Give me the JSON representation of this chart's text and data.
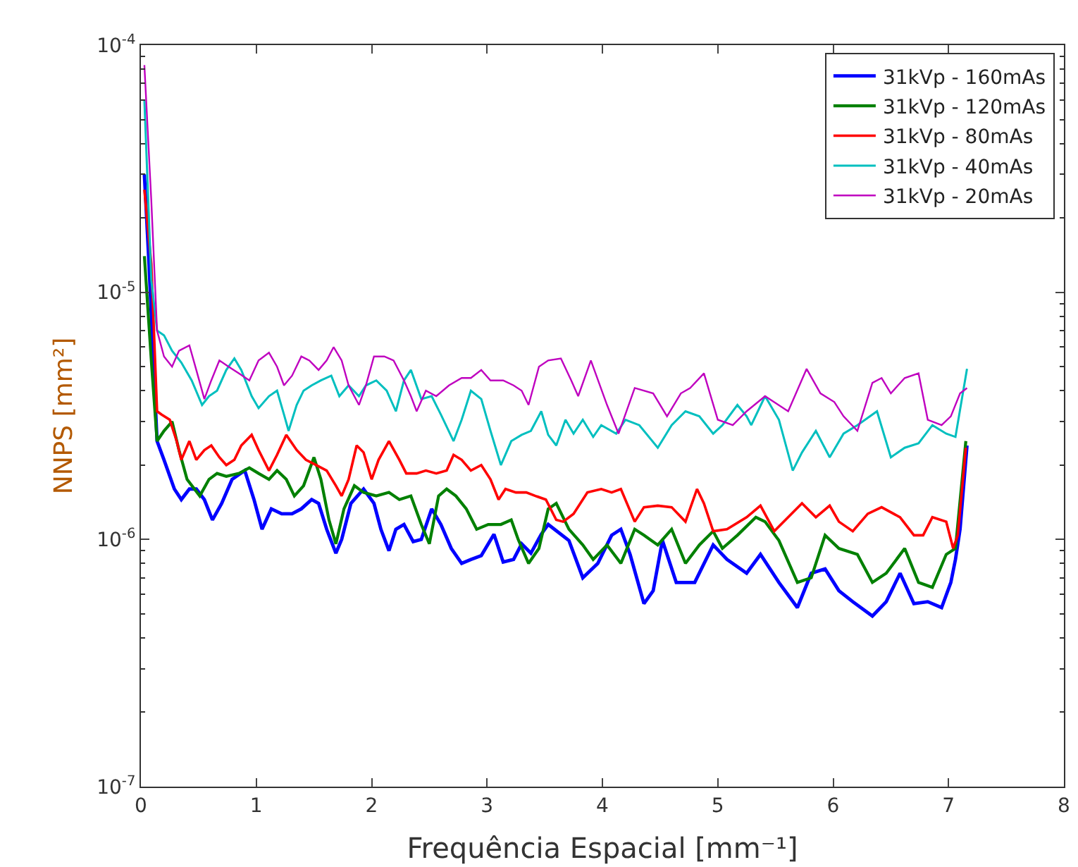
{
  "chart_data": {
    "type": "line",
    "xlabel": "Frequência Espacial [mm⁻¹]",
    "ylabel": "NNPS [mm²]",
    "xlim": [
      0,
      8
    ],
    "xticks": [
      0,
      1,
      2,
      3,
      4,
      5,
      6,
      7,
      8
    ],
    "ylim": [
      1e-07,
      0.0001
    ],
    "yticks": [
      {
        "value": 1e-07,
        "label": "10$^{-7}$"
      },
      {
        "value": 1e-06,
        "label": "10$^{-6}$"
      },
      {
        "value": 1e-05,
        "label": "10$^{-5}$"
      },
      {
        "value": 0.0001,
        "label": "10$^{-4}$"
      }
    ],
    "log": "y",
    "legend": "top right",
    "marker": "none",
    "line_style": "solid",
    "series": [
      {
        "name": "31kVp - 160mAs",
        "color": "#0000ff",
        "x": [
          0.03,
          0.07,
          0.14,
          0.2,
          0.29,
          0.35,
          0.42,
          0.48,
          0.55,
          0.62,
          0.7,
          0.79,
          0.9,
          0.98,
          1.05,
          1.13,
          1.22,
          1.31,
          1.39,
          1.48,
          1.54,
          1.61,
          1.69,
          1.74,
          1.82,
          1.93,
          2.02,
          2.08,
          2.15,
          2.21,
          2.28,
          2.36,
          2.43,
          2.52,
          2.6,
          2.69,
          2.78,
          2.86,
          2.95,
          3.06,
          3.14,
          3.23,
          3.3,
          3.38,
          3.47,
          3.53,
          3.71,
          3.83,
          3.96,
          4.08,
          4.16,
          4.24,
          4.36,
          4.44,
          4.52,
          4.64,
          4.8,
          4.96,
          5.08,
          5.25,
          5.37,
          5.53,
          5.69,
          5.81,
          5.93,
          6.05,
          6.17,
          6.34,
          6.46,
          6.58,
          6.7,
          6.82,
          6.94,
          7.02,
          7.06,
          7.1,
          7.16
        ],
        "values": [
          3e-05,
          1.3e-05,
          2.5e-06,
          2.1e-06,
          1.6e-06,
          1.45e-06,
          1.6e-06,
          1.6e-06,
          1.45e-06,
          1.2e-06,
          1.4e-06,
          1.75e-06,
          1.9e-06,
          1.45e-06,
          1.1e-06,
          1.33e-06,
          1.27e-06,
          1.27e-06,
          1.33e-06,
          1.45e-06,
          1.4e-06,
          1.1e-06,
          8.8e-07,
          1e-06,
          1.4e-06,
          1.6e-06,
          1.4e-06,
          1.1e-06,
          9e-07,
          1.1e-06,
          1.15e-06,
          9.8e-07,
          1e-06,
          1.33e-06,
          1.15e-06,
          9.2e-07,
          8e-07,
          8.3e-07,
          8.6e-07,
          1.05e-06,
          8.1e-07,
          8.3e-07,
          9.6e-07,
          8.8e-07,
          1.05e-06,
          1.15e-06,
          9.9e-07,
          7e-07,
          8e-07,
          1.04e-06,
          1.1e-06,
          8.7e-07,
          5.5e-07,
          6.2e-07,
          9.9e-07,
          6.7e-07,
          6.7e-07,
          9.5e-07,
          8.3e-07,
          7.3e-07,
          8.7e-07,
          6.7e-07,
          5.3e-07,
          7.3e-07,
          7.6e-07,
          6.2e-07,
          5.6e-07,
          4.9e-07,
          5.6e-07,
          7.3e-07,
          5.5e-07,
          5.6e-07,
          5.3e-07,
          6.7e-07,
          8.3e-07,
          1.1e-06,
          2.4e-06
        ]
      },
      {
        "name": "31kVp - 120mAs",
        "color": "#008000",
        "x": [
          0.03,
          0.09,
          0.14,
          0.2,
          0.27,
          0.33,
          0.4,
          0.51,
          0.59,
          0.66,
          0.74,
          0.85,
          0.94,
          1.02,
          1.11,
          1.18,
          1.26,
          1.33,
          1.41,
          1.5,
          1.56,
          1.63,
          1.69,
          1.76,
          1.85,
          1.93,
          2.04,
          2.15,
          2.24,
          2.34,
          2.43,
          2.5,
          2.58,
          2.65,
          2.73,
          2.82,
          2.91,
          3.01,
          3.12,
          3.21,
          3.27,
          3.36,
          3.45,
          3.53,
          3.6,
          3.71,
          3.83,
          3.92,
          4.04,
          4.16,
          4.28,
          4.36,
          4.48,
          4.6,
          4.72,
          4.84,
          4.96,
          5.04,
          5.17,
          5.33,
          5.41,
          5.53,
          5.69,
          5.81,
          5.93,
          6.05,
          6.21,
          6.34,
          6.46,
          6.62,
          6.74,
          6.86,
          6.98,
          7.06,
          7.15
        ],
        "values": [
          1.4e-05,
          5.3e-06,
          2.5e-06,
          2.75e-06,
          3e-06,
          2.3e-06,
          1.75e-06,
          1.5e-06,
          1.75e-06,
          1.85e-06,
          1.8e-06,
          1.85e-06,
          1.95e-06,
          1.85e-06,
          1.75e-06,
          1.9e-06,
          1.75e-06,
          1.5e-06,
          1.65e-06,
          2.15e-06,
          1.75e-06,
          1.2e-06,
          9.6e-07,
          1.33e-06,
          1.65e-06,
          1.55e-06,
          1.5e-06,
          1.55e-06,
          1.45e-06,
          1.5e-06,
          1.15e-06,
          9.6e-07,
          1.5e-06,
          1.6e-06,
          1.5e-06,
          1.33e-06,
          1.1e-06,
          1.15e-06,
          1.15e-06,
          1.2e-06,
          1e-06,
          8e-07,
          9.2e-07,
          1.33e-06,
          1.4e-06,
          1.1e-06,
          9.5e-07,
          8.3e-07,
          9.5e-07,
          8e-07,
          1.1e-06,
          1.04e-06,
          9.5e-07,
          1.1e-06,
          8e-07,
          9.5e-07,
          1.08e-06,
          9.2e-07,
          1.04e-06,
          1.23e-06,
          1.18e-06,
          9.9e-07,
          6.7e-07,
          7e-07,
          1.04e-06,
          9.2e-07,
          8.7e-07,
          6.7e-07,
          7.3e-07,
          9.2e-07,
          6.7e-07,
          6.4e-07,
          8.7e-07,
          9.2e-07,
          2.5e-06
        ]
      },
      {
        "name": "31kVp - 80mAs",
        "color": "#ff0000",
        "x": [
          0.03,
          0.09,
          0.14,
          0.18,
          0.25,
          0.31,
          0.35,
          0.42,
          0.48,
          0.55,
          0.61,
          0.68,
          0.74,
          0.81,
          0.87,
          0.96,
          1.02,
          1.11,
          1.18,
          1.26,
          1.35,
          1.43,
          1.52,
          1.61,
          1.69,
          1.74,
          1.8,
          1.87,
          1.93,
          2.0,
          2.06,
          2.15,
          2.24,
          2.3,
          2.39,
          2.47,
          2.56,
          2.65,
          2.71,
          2.78,
          2.86,
          2.95,
          3.03,
          3.1,
          3.16,
          3.25,
          3.34,
          3.42,
          3.51,
          3.6,
          3.66,
          3.75,
          3.87,
          3.99,
          4.08,
          4.16,
          4.28,
          4.36,
          4.48,
          4.6,
          4.72,
          4.82,
          4.88,
          4.96,
          5.08,
          5.25,
          5.37,
          5.49,
          5.61,
          5.73,
          5.85,
          5.97,
          6.05,
          6.17,
          6.3,
          6.42,
          6.58,
          6.7,
          6.78,
          6.86,
          6.98,
          7.04,
          7.08,
          7.15
        ],
        "values": [
          2.6e-05,
          1.3e-05,
          3.3e-06,
          3.2e-06,
          3.05e-06,
          2.5e-06,
          2.1e-06,
          2.5e-06,
          2.1e-06,
          2.3e-06,
          2.4e-06,
          2.15e-06,
          2e-06,
          2.1e-06,
          2.4e-06,
          2.65e-06,
          2.3e-06,
          1.9e-06,
          2.2e-06,
          2.65e-06,
          2.3e-06,
          2.1e-06,
          2e-06,
          1.9e-06,
          1.65e-06,
          1.5e-06,
          1.75e-06,
          2.4e-06,
          2.25e-06,
          1.75e-06,
          2.1e-06,
          2.5e-06,
          2.1e-06,
          1.85e-06,
          1.85e-06,
          1.9e-06,
          1.85e-06,
          1.9e-06,
          2.2e-06,
          2.1e-06,
          1.9e-06,
          2e-06,
          1.75e-06,
          1.45e-06,
          1.6e-06,
          1.55e-06,
          1.55e-06,
          1.5e-06,
          1.45e-06,
          1.2e-06,
          1.18e-06,
          1.27e-06,
          1.55e-06,
          1.6e-06,
          1.55e-06,
          1.6e-06,
          1.18e-06,
          1.35e-06,
          1.37e-06,
          1.35e-06,
          1.18e-06,
          1.6e-06,
          1.4e-06,
          1.08e-06,
          1.1e-06,
          1.23e-06,
          1.37e-06,
          1.08e-06,
          1.23e-06,
          1.4e-06,
          1.23e-06,
          1.37e-06,
          1.18e-06,
          1.08e-06,
          1.27e-06,
          1.35e-06,
          1.23e-06,
          1.04e-06,
          1.04e-06,
          1.23e-06,
          1.18e-06,
          9.2e-07,
          1.04e-06,
          2.35e-06
        ]
      },
      {
        "name": "31kVp - 40mAs",
        "color": "#00bfbf",
        "x": [
          0.03,
          0.09,
          0.14,
          0.2,
          0.27,
          0.35,
          0.44,
          0.53,
          0.59,
          0.66,
          0.74,
          0.81,
          0.87,
          0.96,
          1.02,
          1.11,
          1.18,
          1.24,
          1.28,
          1.35,
          1.41,
          1.48,
          1.56,
          1.65,
          1.72,
          1.8,
          1.89,
          1.95,
          2.04,
          2.13,
          2.21,
          2.28,
          2.34,
          2.43,
          2.52,
          2.6,
          2.71,
          2.78,
          2.86,
          2.95,
          3.03,
          3.12,
          3.21,
          3.3,
          3.38,
          3.47,
          3.53,
          3.6,
          3.68,
          3.75,
          3.83,
          3.92,
          3.99,
          4.12,
          4.2,
          4.32,
          4.48,
          4.6,
          4.72,
          4.84,
          4.96,
          5.04,
          5.17,
          5.25,
          5.29,
          5.41,
          5.53,
          5.65,
          5.73,
          5.85,
          5.97,
          6.09,
          6.21,
          6.38,
          6.5,
          6.62,
          6.74,
          6.86,
          6.98,
          7.06,
          7.16
        ],
        "values": [
          6e-05,
          1.12e-05,
          7e-06,
          6.7e-06,
          5.8e-06,
          5.2e-06,
          4.4e-06,
          3.5e-06,
          3.8e-06,
          4e-06,
          4.85e-06,
          5.4e-06,
          4.85e-06,
          3.8e-06,
          3.4e-06,
          3.8e-06,
          4e-06,
          3.2e-06,
          2.75e-06,
          3.5e-06,
          4e-06,
          4.2e-06,
          4.4e-06,
          4.6e-06,
          3.8e-06,
          4.2e-06,
          3.8e-06,
          4.2e-06,
          4.4e-06,
          4e-06,
          3.3e-06,
          4.4e-06,
          4.85e-06,
          3.7e-06,
          3.8e-06,
          3.2e-06,
          2.5e-06,
          3.05e-06,
          4e-06,
          3.7e-06,
          2.75e-06,
          2e-06,
          2.5e-06,
          2.65e-06,
          2.75e-06,
          3.3e-06,
          2.65e-06,
          2.4e-06,
          3.05e-06,
          2.68e-06,
          3.05e-06,
          2.6e-06,
          2.9e-06,
          2.68e-06,
          3.05e-06,
          2.9e-06,
          2.35e-06,
          2.9e-06,
          3.3e-06,
          3.15e-06,
          2.68e-06,
          2.9e-06,
          3.5e-06,
          3.15e-06,
          2.9e-06,
          3.8e-06,
          3.05e-06,
          1.9e-06,
          2.25e-06,
          2.75e-06,
          2.15e-06,
          2.68e-06,
          2.9e-06,
          3.3e-06,
          2.15e-06,
          2.35e-06,
          2.45e-06,
          2.9e-06,
          2.68e-06,
          2.6e-06,
          4.9e-06
        ]
      },
      {
        "name": "31kVp - 20mAs",
        "color": "#bf00bf",
        "x": [
          0.03,
          0.09,
          0.14,
          0.2,
          0.27,
          0.33,
          0.42,
          0.48,
          0.55,
          0.61,
          0.68,
          0.76,
          0.85,
          0.94,
          1.02,
          1.11,
          1.18,
          1.24,
          1.31,
          1.39,
          1.46,
          1.54,
          1.61,
          1.67,
          1.74,
          1.8,
          1.89,
          1.95,
          2.02,
          2.11,
          2.19,
          2.28,
          2.34,
          2.39,
          2.47,
          2.56,
          2.67,
          2.78,
          2.86,
          2.95,
          3.03,
          3.14,
          3.23,
          3.3,
          3.36,
          3.45,
          3.53,
          3.64,
          3.73,
          3.79,
          3.9,
          4.04,
          4.14,
          4.28,
          4.44,
          4.56,
          4.68,
          4.76,
          4.88,
          5.0,
          5.13,
          5.25,
          5.41,
          5.61,
          5.77,
          5.89,
          6.01,
          6.09,
          6.21,
          6.34,
          6.42,
          6.5,
          6.62,
          6.74,
          6.82,
          6.94,
          7.02,
          7.1,
          7.16
        ],
        "values": [
          8.3e-05,
          2.35e-05,
          7e-06,
          5.5e-06,
          5e-06,
          5.8e-06,
          6.1e-06,
          4.85e-06,
          3.7e-06,
          4.4e-06,
          5.3e-06,
          5e-06,
          4.7e-06,
          4.4e-06,
          5.3e-06,
          5.7e-06,
          5e-06,
          4.2e-06,
          4.6e-06,
          5.5e-06,
          5.3e-06,
          4.85e-06,
          5.3e-06,
          6e-06,
          5.3e-06,
          4.2e-06,
          3.5e-06,
          4.2e-06,
          5.5e-06,
          5.5e-06,
          5.3e-06,
          4.4e-06,
          3.8e-06,
          3.3e-06,
          4e-06,
          3.8e-06,
          4.2e-06,
          4.5e-06,
          4.5e-06,
          4.85e-06,
          4.4e-06,
          4.4e-06,
          4.2e-06,
          4e-06,
          3.5e-06,
          5e-06,
          5.3e-06,
          5.4e-06,
          4.4e-06,
          3.8e-06,
          5.3e-06,
          3.5e-06,
          2.68e-06,
          4.1e-06,
          3.9e-06,
          3.15e-06,
          3.9e-06,
          4.1e-06,
          4.7e-06,
          3.05e-06,
          2.9e-06,
          3.3e-06,
          3.8e-06,
          3.3e-06,
          4.9e-06,
          3.9e-06,
          3.6e-06,
          3.15e-06,
          2.75e-06,
          4.3e-06,
          4.5e-06,
          3.9e-06,
          4.5e-06,
          4.7e-06,
          3.05e-06,
          2.9e-06,
          3.15e-06,
          3.9e-06,
          4.1e-06
        ]
      }
    ]
  }
}
